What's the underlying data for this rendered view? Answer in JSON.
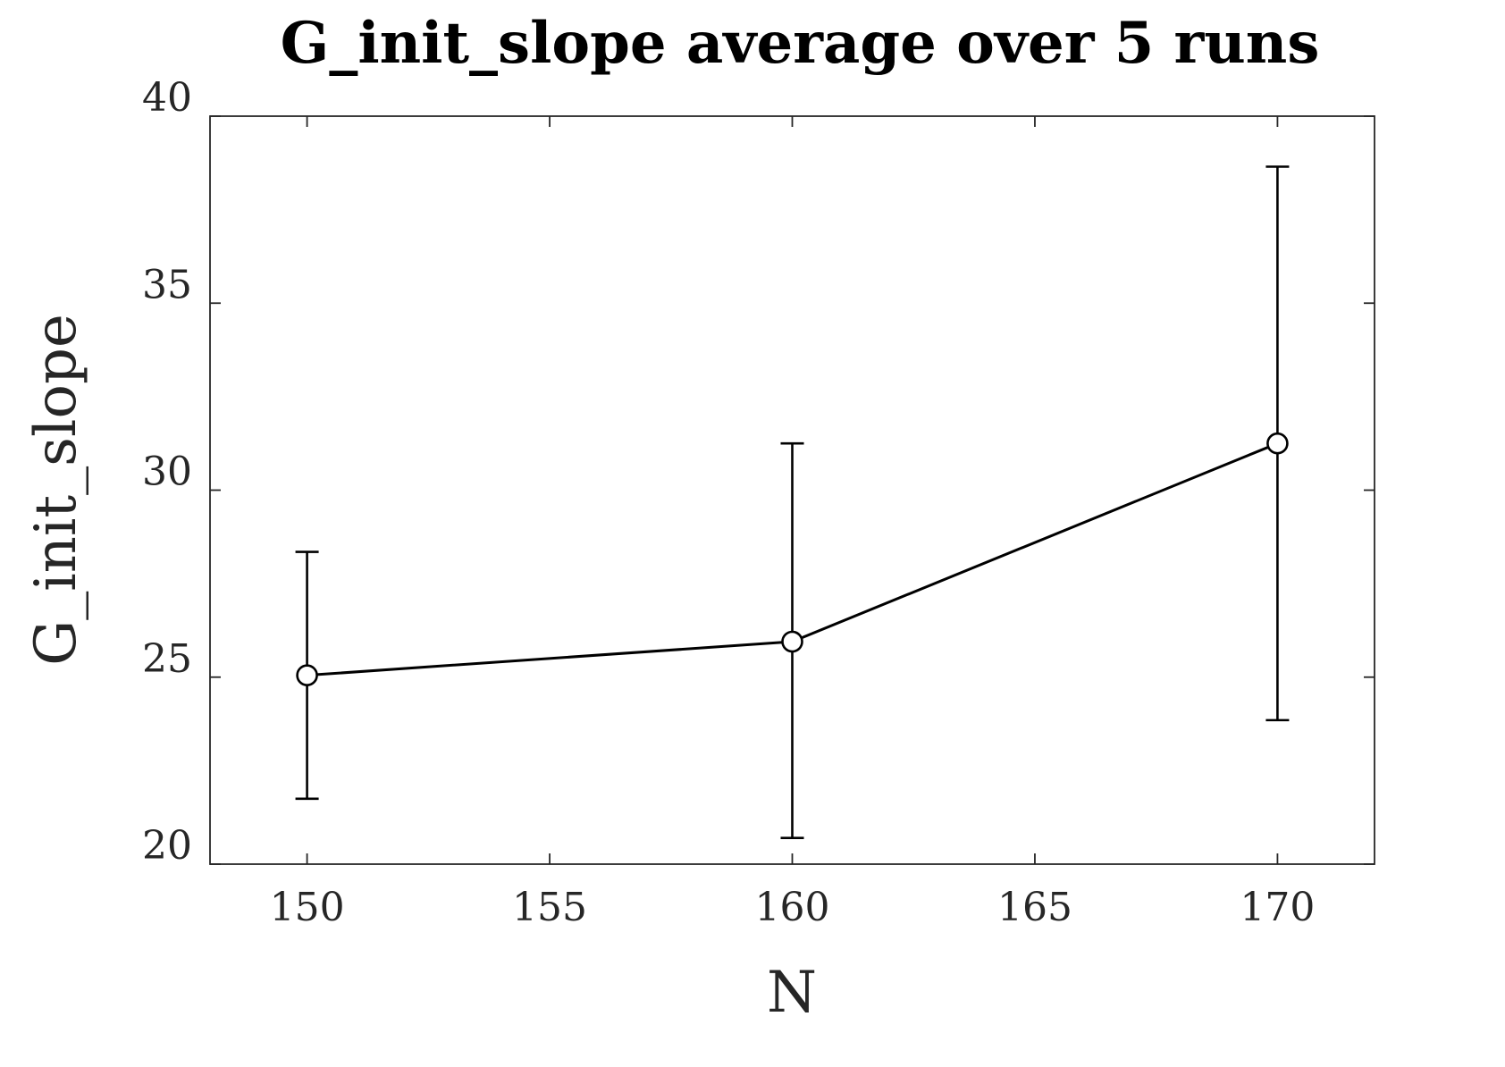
{
  "chart_data": {
    "type": "line",
    "title": "G_init_slope average over 5 runs",
    "xlabel": "N",
    "ylabel": "G_init_slope",
    "xlim": [
      148,
      172
    ],
    "ylim": [
      20,
      40
    ],
    "x_ticks": [
      150,
      155,
      160,
      165,
      170
    ],
    "y_ticks": [
      20,
      25,
      30,
      35,
      40
    ],
    "x_tick_labels": [
      "150",
      "155",
      "160",
      "165",
      "170"
    ],
    "y_tick_labels": [
      "20",
      "25",
      "30",
      "35",
      "40"
    ],
    "grid": false,
    "legend": "none",
    "series": [
      {
        "x": [
          150,
          160,
          170
        ],
        "values": [
          25.05,
          25.95,
          31.25
        ],
        "err_low": [
          21.75,
          20.7,
          23.85
        ],
        "err_high": [
          28.35,
          31.25,
          38.65
        ],
        "marker": "open-circle",
        "color": "#000000"
      }
    ],
    "colors": {
      "axes": "#262626",
      "line": "#000000",
      "background": "#ffffff"
    }
  }
}
